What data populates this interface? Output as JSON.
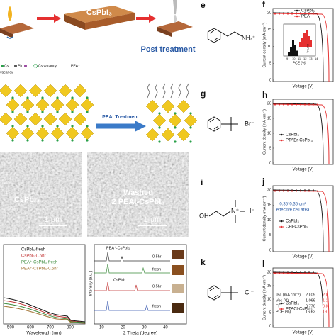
{
  "panel_a": {
    "film": "CsPbI₃",
    "caption": "Post treatment"
  },
  "panel_b": {
    "legend": [
      "Cs",
      "Pb",
      "I",
      "Cs vacancy",
      "PEA⁺"
    ],
    "legend_cont": "vacancy",
    "arrow": "PEAI Treatment"
  },
  "panel_c": {
    "left": {
      "label": "CsPbI₃",
      "scale": "1 μm"
    },
    "right": {
      "label": "Washed",
      "sublabel": "2 PEAI-CsPbI₃",
      "scale": "1 μm"
    }
  },
  "panel_d": {
    "legend": [
      "CsPbI₃-fresh",
      "CsPbI₃-0.5hr",
      "PEA⁺-CsPbI₃-fresh",
      "PEA⁺-CsPbI₃-0.5hr"
    ],
    "x_label": "Wavelength (nm)",
    "x_ticks": [
      "500",
      "600",
      "700",
      "800"
    ]
  },
  "panel_xrd": {
    "y_label": "Intensity (a.u.)",
    "x_label": "2 Theta (degree)",
    "x_ticks": [
      "10",
      "20",
      "30",
      "40"
    ],
    "traces": [
      "PEA⁺-CsPbI₃",
      "0.5hr",
      "fresh",
      "CsPbI₃",
      "0.5hr",
      "fresh"
    ]
  },
  "molecules": [
    {
      "letter": "e",
      "ion": "NH₃⁺"
    },
    {
      "letter": "g",
      "ion": "Br⁻"
    },
    {
      "letter": "i",
      "group": "OH",
      "center": "N⁺",
      "ion": "I⁻"
    },
    {
      "letter": "k",
      "ion": "Cl⁻"
    }
  ],
  "jv": [
    {
      "letter": "f",
      "legend": [
        "CsPbI₃",
        "PEA"
      ],
      "y_label": "Current density (mA cm⁻²)",
      "x_label": "Voltage (V)",
      "y_ticks": [
        "20",
        "15",
        "10",
        "5",
        "0"
      ],
      "inset": {
        "x_label": "PCE (%)",
        "x_ticks": [
          "9",
          "10",
          "11",
          "12",
          "13",
          "14"
        ],
        "label": "CsPbI₃"
      }
    },
    {
      "letter": "h",
      "legend": [
        "CsPbI₃",
        "PTABr-CsPbI₃"
      ],
      "y_label": "Current density (mA cm⁻²)",
      "x_label": "Voltage (V)",
      "y_ticks": [
        "20",
        "15",
        "10",
        "5",
        "0"
      ]
    },
    {
      "letter": "j",
      "legend": [
        "CsPbI₃",
        "CHI-CsPbI₃"
      ],
      "y_label": "Current density (mA cm⁻²)",
      "x_label": "Voltage (V)",
      "y_ticks": [
        "20",
        "15",
        "10",
        "5",
        "0"
      ],
      "note": [
        "0.35*0.35 cm²",
        "effective cell area"
      ]
    },
    {
      "letter": "l",
      "legend": [
        "CsPbI₃",
        "PTACl-CsPbI₃"
      ],
      "y_label": "Current density (mA cm⁻²)",
      "x_label": "Voltage (V)",
      "y_ticks": [
        "20",
        "15",
        "10",
        "5",
        "0"
      ],
      "table": [
        [
          "Jsc (mA cm⁻²)",
          "20.09",
          "20."
        ],
        [
          "Voc (V)",
          "1.066",
          "1.1"
        ],
        [
          "FF",
          "0.776",
          "0.8"
        ],
        [
          "PCE (%)",
          "16.62",
          "19"
        ]
      ]
    }
  ]
}
